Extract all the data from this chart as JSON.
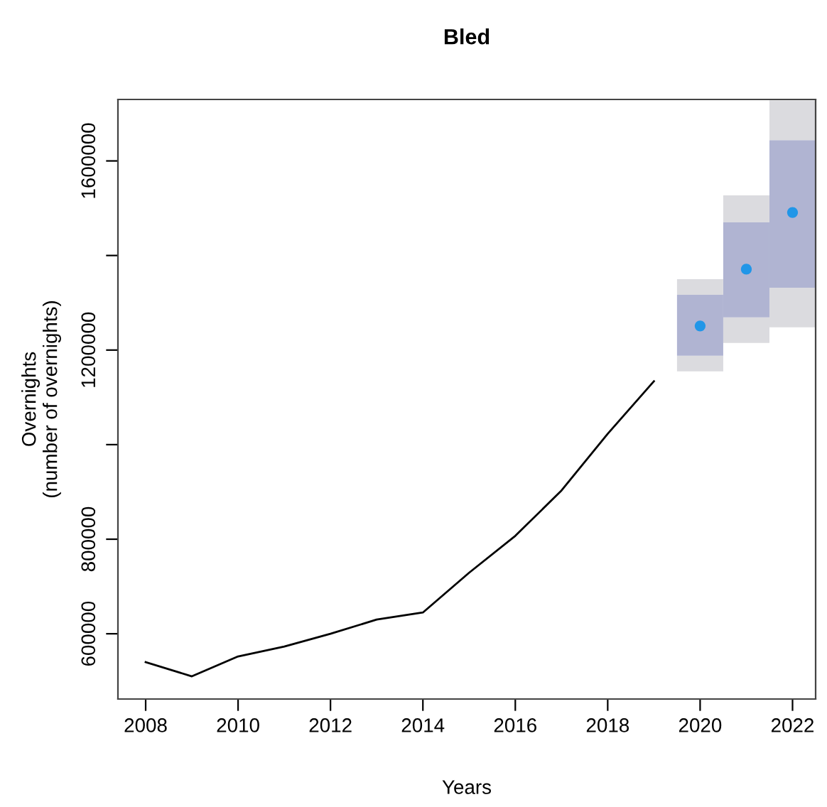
{
  "chart_data": {
    "type": "line",
    "title": "Bled",
    "xlabel": "Years",
    "ylabel": "Overnights\n(number of overnights)",
    "xlim": [
      2007.4,
      2022.5
    ],
    "xticks": [
      2008,
      2010,
      2012,
      2014,
      2016,
      2018,
      2020,
      2022
    ],
    "ylim": [
      462000,
      1730000
    ],
    "yticks": [
      600000,
      800000,
      {
        "value": 1000000,
        "label": null
      },
      1200000,
      {
        "value": 1400000,
        "label": null
      },
      1600000
    ],
    "grid": false,
    "series": [
      {
        "type": "bar",
        "color": "#dbdbdf",
        "x": [
          2020,
          2021,
          2022
        ],
        "base": [
          1155000,
          1215000,
          1248000
        ],
        "values": [
          33000,
          54000,
          84000
        ]
      },
      {
        "type": "bar",
        "color": "#b0b4d2",
        "x": [
          2020,
          2021,
          2022
        ],
        "base": [
          1188000,
          1269000,
          1332000
        ],
        "values": [
          129000,
          201000,
          312000
        ]
      },
      {
        "type": "bar",
        "color": "#dbdbdf",
        "x": [
          2020,
          2021,
          2022
        ],
        "base": [
          1317000,
          1470000,
          1644000
        ],
        "values": [
          33000,
          57000,
          84000
        ]
      },
      {
        "color": "#000000",
        "x": [
          2008,
          2009,
          2010,
          2011,
          2012,
          2013,
          2014,
          2015,
          2016,
          2017,
          2018,
          2019
        ],
        "values": [
          540000,
          510000,
          552000,
          573000,
          600000,
          630000,
          645000,
          729000,
          807000,
          903000,
          1023000,
          1134000
        ]
      },
      {
        "type": "scatter",
        "color": "#2196e8",
        "marker": "circle",
        "x": [
          2020,
          2021,
          2022
        ],
        "values": [
          1251000,
          1371000,
          1491000
        ]
      }
    ]
  }
}
